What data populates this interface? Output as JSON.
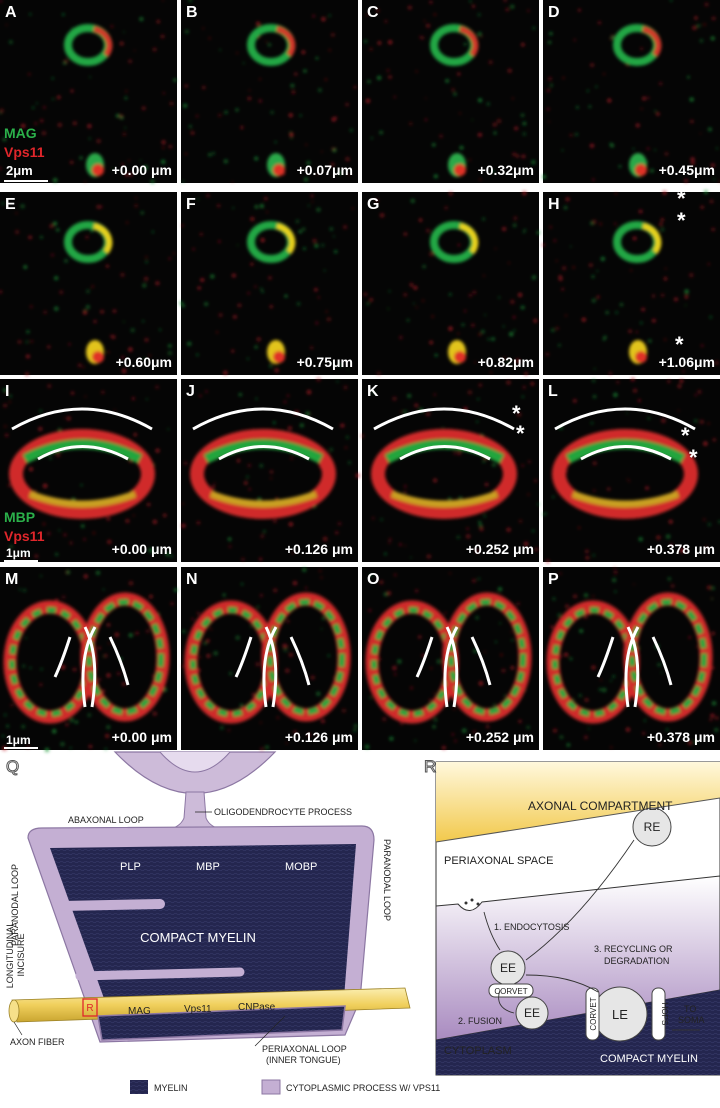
{
  "panels": [
    {
      "letter": "A",
      "offset": "+0.00 μm"
    },
    {
      "letter": "B",
      "offset": "+0.07μm"
    },
    {
      "letter": "C",
      "offset": "+0.32μm"
    },
    {
      "letter": "D",
      "offset": "+0.45μm"
    },
    {
      "letter": "E",
      "offset": "+0.60μm"
    },
    {
      "letter": "F",
      "offset": "+0.75μm"
    },
    {
      "letter": "G",
      "offset": "+0.82μm"
    },
    {
      "letter": "H",
      "offset": "+1.06μm",
      "asterisks": [
        "*",
        "*",
        "*"
      ]
    },
    {
      "letter": "I",
      "offset": "+0.00 μm"
    },
    {
      "letter": "J",
      "offset": "+0.126 μm"
    },
    {
      "letter": "K",
      "offset": "+0.252 μm",
      "asterisks": [
        "*",
        "*"
      ]
    },
    {
      "letter": "L",
      "offset": "+0.378 μm",
      "asterisks": [
        "*",
        "*"
      ]
    },
    {
      "letter": "M",
      "offset": "+0.00 μm"
    },
    {
      "letter": "N",
      "offset": "+0.126 μm"
    },
    {
      "letter": "O",
      "offset": "+0.252 μm"
    },
    {
      "letter": "P",
      "offset": "+0.378 μm"
    }
  ],
  "stains": {
    "row1": {
      "green": "MAG",
      "red": "Vps11",
      "scale": "2μm"
    },
    "row3": {
      "green": "MBP",
      "red": "Vps11",
      "scale": "1μm"
    },
    "row4": {
      "scale": "1μm"
    }
  },
  "diagram_q": {
    "letter": "Q",
    "abaxonal_loop": "ABAXONAL LOOP",
    "process": "OLIGODENDROCYTE PROCESS",
    "paranodal_left": "PARANODAL LOOP",
    "paranodal_right": "PARANODAL LOOP",
    "proteins": [
      "PLP",
      "MBP",
      "MOBP"
    ],
    "compact_myelin": "COMPACT MYELIN",
    "incisure": [
      "LONGITUDINAL",
      "INCISURE"
    ],
    "box": "R",
    "axon_proteins": [
      "MAG",
      "Vps11",
      "CNPase"
    ],
    "axon": "AXON FIBER",
    "periaxonal_loop": [
      "PERIAXONAL LOOP",
      "(INNER TONGUE)"
    ]
  },
  "diagram_r": {
    "letter": "R",
    "axonal": "AXONAL COMPARTMENT",
    "periaxonal": "PERIAXONAL SPACE",
    "endocytosis": "1. ENDOCYTOSIS",
    "re": "RE",
    "ee1": "EE",
    "corvet1": "CORVET",
    "ee2": "EE",
    "fusion": "2. FUSION",
    "recycling": [
      "3. RECYCLING OR",
      "DEGRADATION"
    ],
    "corvet2": "CORVET",
    "le": "LE",
    "hops": "HOPS",
    "to_soma": [
      "TO",
      "SOMA"
    ],
    "cytoplasm": "CYTOPLASM",
    "compact_myelin": "COMPACT MYELIN"
  },
  "legend": {
    "myelin": "MYELIN",
    "cytoplasmic": "CYTOPLASMIC PROCESS W/ VPS11"
  }
}
